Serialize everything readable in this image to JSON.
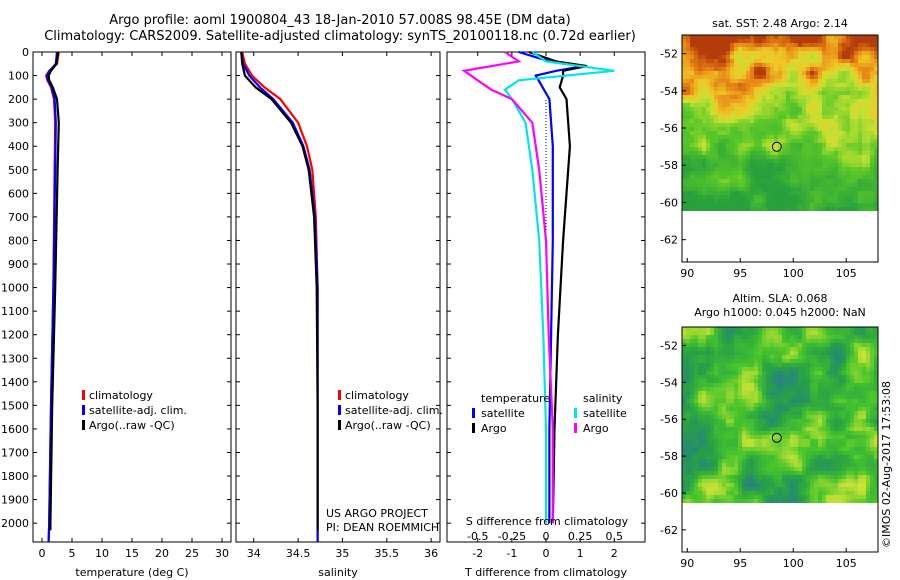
{
  "title": {
    "line1": "Argo profile: aoml 1900804_43 18-Jan-2010 57.008S 98.45E (DM data)",
    "line2": "Climatology: CARS2009. Satellite-adjusted climatology: synTS_20100118.nc (0.72d earlier)"
  },
  "colors": {
    "climatology": "#ff0000",
    "satellite": "#0000ff",
    "argo": "#000000",
    "sal_satellite": "#00e5e5",
    "sal_argo": "#ff00ff"
  },
  "depth_ticks": [
    "0",
    "100",
    "200",
    "300",
    "400",
    "500",
    "600",
    "700",
    "800",
    "900",
    "1000",
    "1100",
    "1200",
    "1300",
    "1400",
    "1500",
    "1600",
    "1700",
    "1800",
    "1900",
    "2000"
  ],
  "depth_values": [
    0,
    100,
    200,
    300,
    400,
    500,
    600,
    700,
    800,
    900,
    1000,
    1100,
    1200,
    1300,
    1400,
    1500,
    1600,
    1700,
    1800,
    1900,
    2000
  ],
  "chart_data": [
    {
      "type": "line",
      "xlabel": "temperature (deg C)",
      "xticks": [
        "0",
        "5",
        "10",
        "15",
        "20",
        "25",
        "30"
      ],
      "xtick_values": [
        0,
        5,
        10,
        15,
        20,
        25,
        30
      ],
      "xlim": [
        -1.5,
        31.5
      ],
      "ylim": [
        2080,
        0
      ],
      "legend": [
        "climatology",
        "satellite-adj. clim.",
        "Argo(..raw -QC)"
      ],
      "series": [
        {
          "name": "climatology",
          "depth": [
            0,
            50,
            80,
            100,
            120,
            150,
            200,
            300,
            500,
            1000,
            1500,
            2000,
            2080
          ],
          "values": [
            2.8,
            2.5,
            1.2,
            0.7,
            0.9,
            1.5,
            2.0,
            2.2,
            2.1,
            1.9,
            1.5,
            1.2,
            1.1
          ]
        },
        {
          "name": "satellite-adj. clim.",
          "depth": [
            0,
            50,
            80,
            100,
            120,
            150,
            200,
            300,
            500,
            1000,
            1500,
            2000,
            2080
          ],
          "values": [
            2.5,
            2.3,
            1.3,
            0.8,
            1.0,
            1.6,
            2.1,
            2.3,
            2.2,
            1.9,
            1.5,
            1.2,
            1.1
          ]
        },
        {
          "name": "Argo(..raw -QC)",
          "depth": [
            0,
            50,
            80,
            100,
            120,
            150,
            200,
            300,
            500,
            1000,
            1500,
            2000,
            2030
          ],
          "values": [
            2.7,
            2.4,
            1.5,
            1.1,
            1.2,
            1.8,
            2.5,
            2.8,
            2.6,
            2.2,
            1.7,
            1.4,
            1.4
          ]
        }
      ]
    },
    {
      "type": "line",
      "xlabel": "salinity",
      "xticks": [
        "34",
        "34.5",
        "35",
        "35.5",
        "36"
      ],
      "xtick_values": [
        34,
        34.5,
        35,
        35.5,
        36
      ],
      "xlim": [
        33.8,
        36.1
      ],
      "ylim": [
        2080,
        0
      ],
      "legend": [
        "climatology",
        "satellite-adj. clim.",
        "Argo(..raw -QC)"
      ],
      "annotations": [
        "US ARGO PROJECT",
        "PI: DEAN ROEMMICH"
      ],
      "series": [
        {
          "name": "climatology",
          "depth": [
            0,
            50,
            100,
            150,
            200,
            300,
            400,
            500,
            700,
            1000,
            1500,
            2000,
            2080
          ],
          "values": [
            33.87,
            33.9,
            33.98,
            34.12,
            34.3,
            34.5,
            34.6,
            34.66,
            34.7,
            34.72,
            34.72,
            34.72,
            34.72
          ]
        },
        {
          "name": "satellite-adj. clim.",
          "depth": [
            0,
            50,
            100,
            150,
            200,
            300,
            400,
            500,
            700,
            1000,
            1500,
            2000,
            2080
          ],
          "values": [
            33.86,
            33.88,
            33.95,
            34.07,
            34.22,
            34.44,
            34.56,
            34.63,
            34.69,
            34.72,
            34.72,
            34.72,
            34.72
          ]
        },
        {
          "name": "Argo(..raw -QC)",
          "depth": [
            0,
            50,
            100,
            150,
            200,
            300,
            400,
            500,
            700,
            1000,
            1500,
            2000,
            2030
          ],
          "values": [
            33.86,
            33.87,
            33.9,
            34.02,
            34.2,
            34.42,
            34.55,
            34.62,
            34.68,
            34.71,
            34.72,
            34.72,
            34.72
          ]
        }
      ]
    },
    {
      "type": "line",
      "xlabel": "T difference from climatology",
      "xlabel_top": "S difference from climatology",
      "xticks": [
        "-2",
        "-1",
        "0",
        "1",
        "2"
      ],
      "xtick_values": [
        -2,
        -1,
        0,
        1,
        2
      ],
      "xticks_top": [
        "-0.5",
        "-0.25",
        "0",
        "0.25",
        "0.5"
      ],
      "xlim": [
        -2.9,
        2.9
      ],
      "ylim": [
        2080,
        0
      ],
      "legend_headers": [
        "temperature",
        "salinity"
      ],
      "legend": [
        "satellite",
        "Argo",
        "satellite",
        "Argo"
      ],
      "series": [
        {
          "name": "satellite",
          "group": "temperature",
          "depth": [
            0,
            40,
            60,
            80,
            100,
            150,
            200,
            400,
            800,
            1200,
            1600,
            2000
          ],
          "values": [
            -0.8,
            0.1,
            1.1,
            0.3,
            -0.3,
            -0.1,
            0.1,
            0.2,
            0.2,
            0.15,
            0.1,
            0.1
          ]
        },
        {
          "name": "Argo",
          "group": "temperature",
          "depth": [
            0,
            40,
            60,
            80,
            100,
            150,
            200,
            400,
            800,
            1200,
            1600,
            2000
          ],
          "values": [
            -0.5,
            0.3,
            1.2,
            0.5,
            0.5,
            0.4,
            0.6,
            0.7,
            0.5,
            0.35,
            0.25,
            0.2
          ]
        },
        {
          "name": "satellite",
          "group": "salinity",
          "depth": [
            0,
            40,
            80,
            120,
            160,
            200,
            300,
            500,
            800,
            1200,
            1600,
            2000
          ],
          "values": [
            -0.1,
            0.0,
            0.5,
            -0.2,
            -0.3,
            -0.25,
            -0.15,
            -0.1,
            -0.05,
            -0.02,
            0.0,
            0.0
          ]
        },
        {
          "name": "Argo",
          "group": "salinity",
          "depth": [
            0,
            40,
            80,
            120,
            160,
            200,
            300,
            500,
            800,
            1200,
            1600,
            2000
          ],
          "values": [
            -0.3,
            -0.2,
            -0.6,
            -0.5,
            -0.4,
            -0.25,
            -0.1,
            -0.05,
            0.0,
            0.02,
            0.05,
            0.05
          ]
        }
      ]
    },
    {
      "type": "heatmap",
      "title": "sat. SST: 2.48 Argo: 2.14",
      "xticks": [
        "90",
        "95",
        "100",
        "105"
      ],
      "yticks": [
        "-52",
        "-54",
        "-56",
        "-58",
        "-60",
        "-62"
      ],
      "xlim": [
        89.5,
        108
      ],
      "ylim": [
        -63.2,
        -51
      ],
      "marker": {
        "lon": 98.45,
        "lat": -57.008
      }
    },
    {
      "type": "heatmap",
      "title_lines": [
        "Altim. SLA: 0.068",
        "Argo h1000: 0.045 h2000: NaN"
      ],
      "xticks": [
        "90",
        "95",
        "100",
        "105"
      ],
      "yticks": [
        "-52",
        "-54",
        "-56",
        "-58",
        "-60",
        "-62"
      ],
      "xlim": [
        89.5,
        108
      ],
      "ylim": [
        -63.2,
        -51
      ],
      "marker": {
        "lon": 98.45,
        "lat": -57.008
      }
    }
  ],
  "credit": "©IMOS 02-Aug-2017 17:53:08"
}
